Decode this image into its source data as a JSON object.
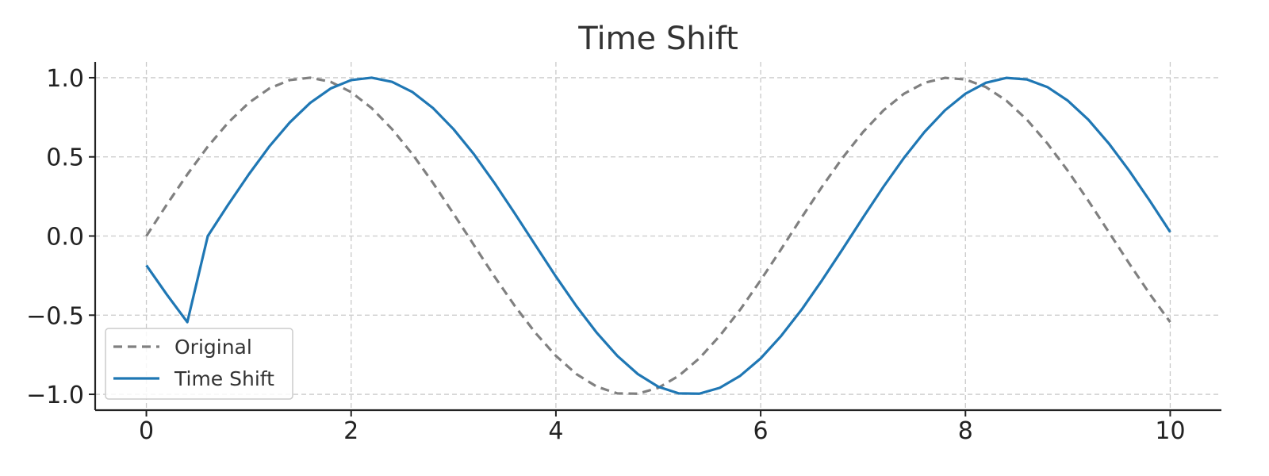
{
  "chart_data": {
    "type": "line",
    "title": "Time Shift",
    "xlabel": "",
    "ylabel": "",
    "xlim": [
      -0.5,
      10.5
    ],
    "ylim": [
      -1.1,
      1.1
    ],
    "grid": true,
    "legend_position": "lower-left",
    "x_ticks": [
      0,
      2,
      4,
      6,
      8,
      10
    ],
    "x_tick_labels": [
      "0",
      "2",
      "4",
      "6",
      "8",
      "10"
    ],
    "y_ticks": [
      1.0,
      0.5,
      0.0,
      -0.5,
      -1.0
    ],
    "y_tick_labels": [
      "1.0",
      "0.5",
      "0.0",
      "−0.5",
      "−1.0"
    ],
    "x": [
      0.0,
      0.2,
      0.4,
      0.6,
      0.8,
      1.0,
      1.2,
      1.4,
      1.6,
      1.8,
      2.0,
      2.2,
      2.4,
      2.6,
      2.8,
      3.0,
      3.2,
      3.4,
      3.6,
      3.8,
      4.0,
      4.2,
      4.4,
      4.6,
      4.8,
      5.0,
      5.2,
      5.4,
      5.6,
      5.8,
      6.0,
      6.2,
      6.4,
      6.6,
      6.8,
      7.0,
      7.2,
      7.4,
      7.6,
      7.8,
      8.0,
      8.2,
      8.4,
      8.6,
      8.8,
      9.0,
      9.2,
      9.4,
      9.6,
      9.8,
      10.0
    ],
    "series": [
      {
        "name": "Original",
        "color": "#808080",
        "style": "dashed",
        "values": [
          0.0,
          0.199,
          0.389,
          0.565,
          0.717,
          0.841,
          0.932,
          0.985,
          1.0,
          0.974,
          0.909,
          0.808,
          0.675,
          0.516,
          0.335,
          0.141,
          -0.058,
          -0.256,
          -0.443,
          -0.612,
          -0.757,
          -0.872,
          -0.952,
          -0.994,
          -0.996,
          -0.959,
          -0.883,
          -0.773,
          -0.631,
          -0.465,
          -0.279,
          -0.083,
          0.117,
          0.312,
          0.494,
          0.657,
          0.794,
          0.899,
          0.968,
          0.999,
          0.989,
          0.941,
          0.855,
          0.735,
          0.585,
          0.412,
          0.223,
          0.025,
          -0.174,
          -0.366,
          -0.544
        ]
      },
      {
        "name": "Time Shift",
        "color": "#1f77b4",
        "style": "solid",
        "values": [
          -0.185,
          -0.37,
          -0.544,
          0.0,
          0.199,
          0.389,
          0.565,
          0.717,
          0.841,
          0.932,
          0.985,
          1.0,
          0.974,
          0.909,
          0.808,
          0.675,
          0.516,
          0.335,
          0.141,
          -0.058,
          -0.256,
          -0.443,
          -0.612,
          -0.757,
          -0.872,
          -0.952,
          -0.994,
          -0.996,
          -0.959,
          -0.883,
          -0.773,
          -0.631,
          -0.465,
          -0.279,
          -0.083,
          0.117,
          0.312,
          0.494,
          0.657,
          0.794,
          0.899,
          0.968,
          0.999,
          0.989,
          0.941,
          0.855,
          0.735,
          0.585,
          0.412,
          0.223,
          0.025
        ]
      }
    ]
  }
}
